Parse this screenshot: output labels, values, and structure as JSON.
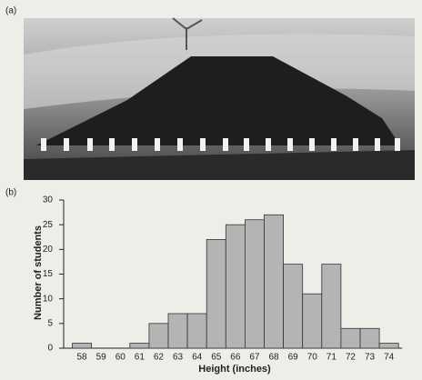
{
  "panels": {
    "a": "(a)",
    "b": "(b)"
  },
  "chart_data": {
    "type": "bar",
    "x_label": "Height (inches)",
    "y_label": "Number of students",
    "categories": [
      "58",
      "59",
      "60",
      "61",
      "62",
      "63",
      "64",
      "65",
      "66",
      "67",
      "68",
      "69",
      "70",
      "71",
      "72",
      "73",
      "74"
    ],
    "values": [
      1,
      0,
      0,
      1,
      5,
      7,
      7,
      22,
      25,
      26,
      27,
      17,
      11,
      17,
      4,
      4,
      1
    ],
    "color": "#b4b4b4",
    "ylim": [
      0,
      30
    ],
    "yticks": [
      0,
      5,
      10,
      15,
      20,
      25,
      30
    ]
  }
}
